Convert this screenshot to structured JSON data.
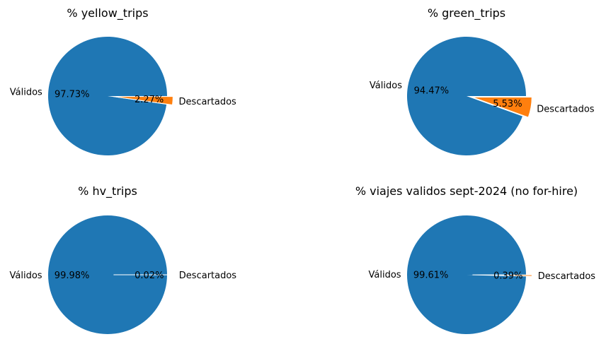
{
  "chart_data": [
    {
      "type": "pie",
      "title": "% yellow_trips",
      "labels": [
        "Válidos",
        "Descartados"
      ],
      "values": [
        97.73,
        2.27
      ],
      "pct_labels": [
        "97.73%",
        "2.27%"
      ],
      "exploded": [
        false,
        true
      ],
      "colors": [
        "#1f77b4",
        "#ff7f0e"
      ]
    },
    {
      "type": "pie",
      "title": "% green_trips",
      "labels": [
        "Válidos",
        "Descartados"
      ],
      "values": [
        94.47,
        5.53
      ],
      "pct_labels": [
        "94.47%",
        "5.53%"
      ],
      "exploded": [
        false,
        true
      ],
      "colors": [
        "#1f77b4",
        "#ff7f0e"
      ]
    },
    {
      "type": "pie",
      "title": "% hv_trips",
      "labels": [
        "Válidos",
        "Descartados"
      ],
      "values": [
        99.98,
        0.02
      ],
      "pct_labels": [
        "99.98%",
        "0.02%"
      ],
      "exploded": [
        false,
        true
      ],
      "colors": [
        "#1f77b4",
        "#ff7f0e"
      ]
    },
    {
      "type": "pie",
      "title": "% viajes validos sept-2024 (no for-hire)",
      "labels": [
        "Válidos",
        "Descartados"
      ],
      "values": [
        99.61,
        0.39
      ],
      "pct_labels": [
        "99.61%",
        "0.39%"
      ],
      "exploded": [
        false,
        true
      ],
      "colors": [
        "#1f77b4",
        "#ff7f0e"
      ]
    }
  ]
}
